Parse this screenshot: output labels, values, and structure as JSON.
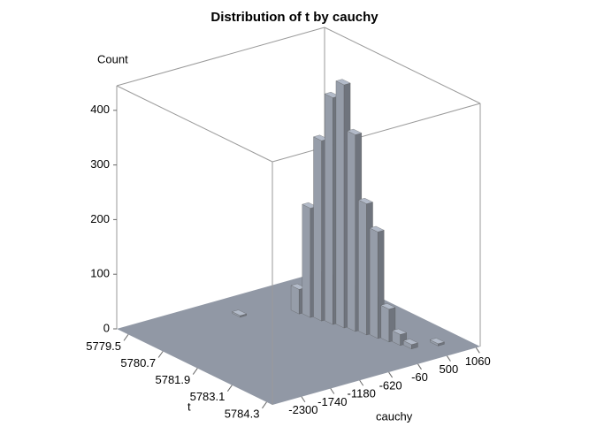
{
  "chart_data": {
    "type": "bar3d",
    "title": "Distribution of t by cauchy",
    "zlabel": "Count",
    "ylabel": "t",
    "xlabel": "cauchy",
    "xlim": [
      -2860,
      1140
    ],
    "xticks": [
      -2300,
      -1740,
      -1180,
      -620,
      -60,
      500,
      1060
    ],
    "ylim": [
      5779.1,
      5784.5
    ],
    "yticks": [
      5779.5,
      5780.7,
      5781.9,
      5783.1,
      5784.3
    ],
    "zlim": [
      0,
      445
    ],
    "zticks": [
      0,
      100,
      200,
      300,
      400
    ],
    "x": [
      -1000,
      -200,
      -150,
      -100,
      -50,
      0,
      50,
      100,
      150,
      200,
      250,
      300,
      700
    ],
    "y": [
      5780.0,
      5780.6,
      5780.9,
      5781.2,
      5781.5,
      5781.8,
      5782.1,
      5782.4,
      5782.7,
      5783.0,
      5783.3,
      5783.6,
      5783.8
    ],
    "values": [
      3,
      45,
      200,
      330,
      415,
      445,
      360,
      240,
      195,
      60,
      20,
      8,
      4
    ],
    "color": "#6f747d",
    "floor_color": "#9198a5"
  }
}
